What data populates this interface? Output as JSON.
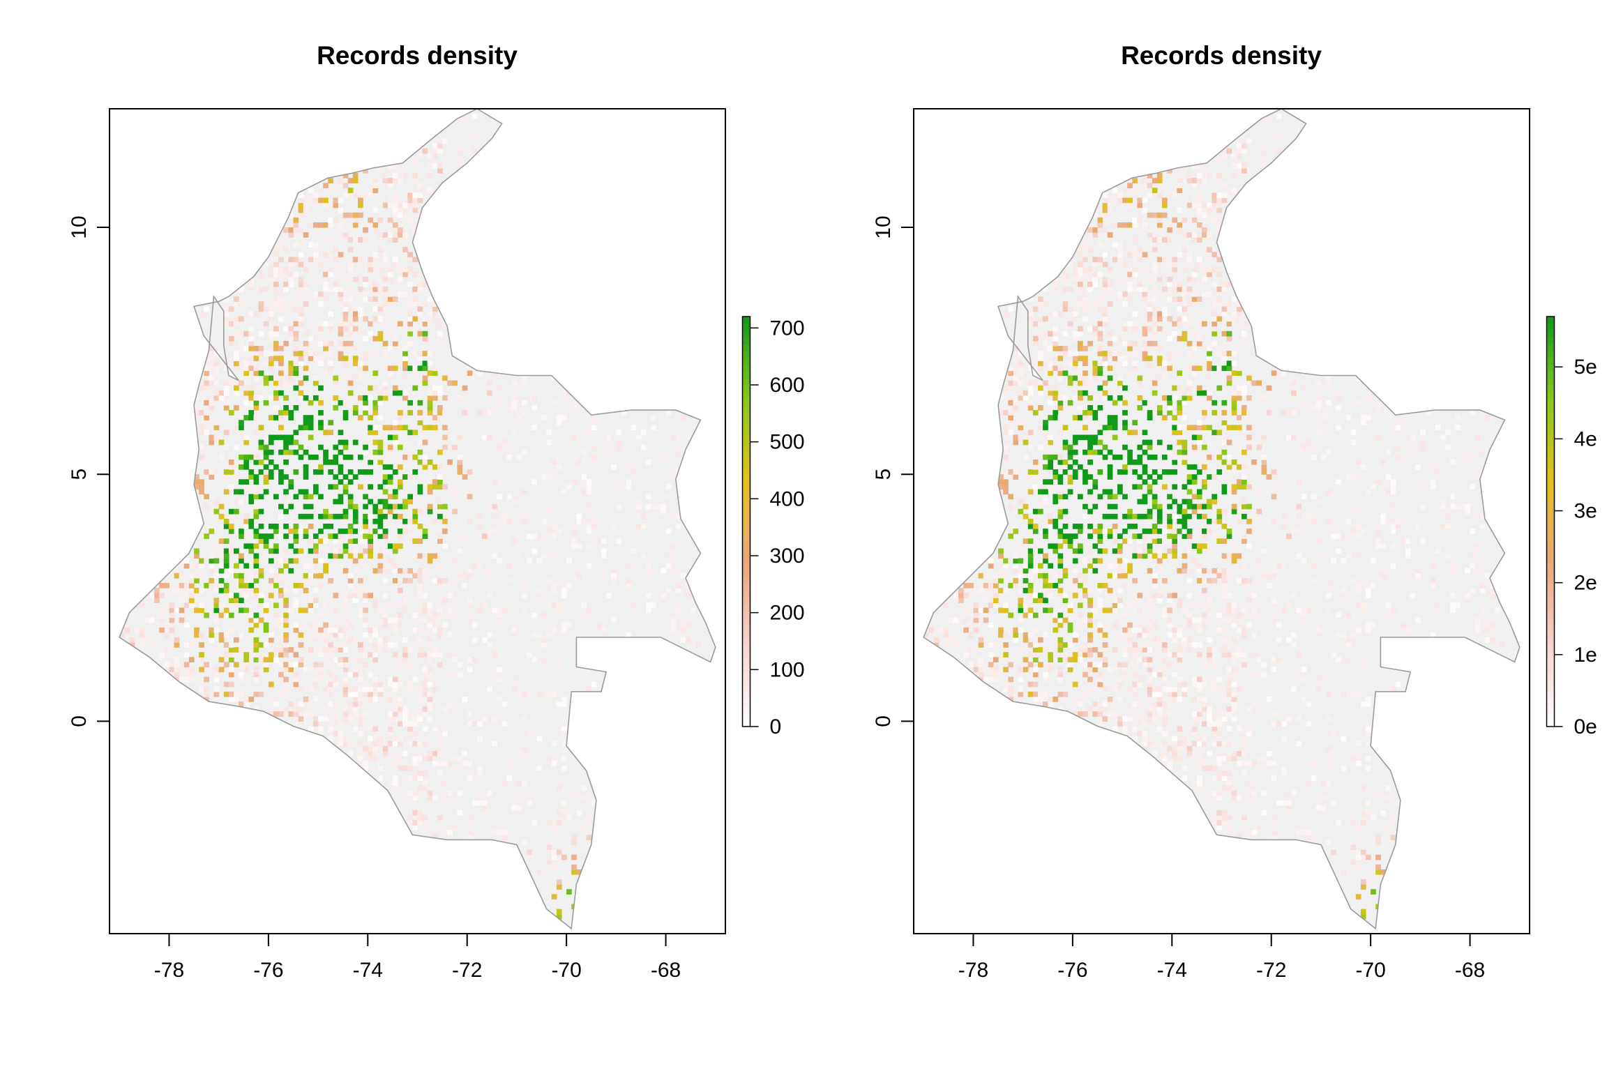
{
  "colors": {
    "background": "#ffffff",
    "land_base": "#f0f0f0",
    "border": "#9a9a9a",
    "ramp": [
      "#ffffff",
      "#f5d3cf",
      "#e8a87c",
      "#e0c21a",
      "#8bc81a",
      "#0f9a1a"
    ]
  },
  "chart_data": [
    {
      "type": "heatmap",
      "title": "Records density",
      "xlabel": "",
      "ylabel": "",
      "xlim": [
        -79.2,
        -66.8
      ],
      "ylim": [
        -4.3,
        12.4
      ],
      "x_ticks": [
        -78,
        -76,
        -74,
        -72,
        -70,
        -68
      ],
      "x_tick_labels": [
        "-78",
        "-76",
        "-74",
        "-72",
        "-70",
        "-68"
      ],
      "y_ticks": [
        0,
        5,
        10
      ],
      "y_tick_labels": [
        "0",
        "5",
        "10"
      ],
      "legend": {
        "placement": "right",
        "range": [
          0,
          720
        ],
        "ticks": [
          0,
          100,
          200,
          300,
          400,
          500,
          600,
          700
        ],
        "tick_labels": [
          "0",
          "100",
          "200",
          "300",
          "400",
          "500",
          "600",
          "700"
        ]
      },
      "region_outline_lonlat": [
        [
          -77.1,
          8.6
        ],
        [
          -76.9,
          8.3
        ],
        [
          -76.9,
          7.6
        ],
        [
          -76.8,
          7.0
        ],
        [
          -76.6,
          6.9
        ],
        [
          -77.3,
          7.8
        ],
        [
          -77.5,
          8.4
        ],
        [
          -77.0,
          8.5
        ],
        [
          -76.8,
          8.6
        ],
        [
          -76.3,
          9.0
        ],
        [
          -76.0,
          9.4
        ],
        [
          -75.8,
          9.8
        ],
        [
          -75.6,
          10.2
        ],
        [
          -75.4,
          10.7
        ],
        [
          -74.8,
          11.0
        ],
        [
          -74.3,
          11.1
        ],
        [
          -73.9,
          11.2
        ],
        [
          -73.3,
          11.3
        ],
        [
          -72.7,
          11.8
        ],
        [
          -72.2,
          12.2
        ],
        [
          -71.8,
          12.4
        ],
        [
          -71.3,
          12.1
        ],
        [
          -71.5,
          11.8
        ],
        [
          -72.0,
          11.3
        ],
        [
          -72.5,
          10.9
        ],
        [
          -72.9,
          10.4
        ],
        [
          -73.1,
          9.7
        ],
        [
          -72.9,
          9.1
        ],
        [
          -72.7,
          8.6
        ],
        [
          -72.4,
          8.0
        ],
        [
          -72.3,
          7.4
        ],
        [
          -71.8,
          7.1
        ],
        [
          -71.0,
          7.0
        ],
        [
          -70.3,
          7.0
        ],
        [
          -69.5,
          6.2
        ],
        [
          -68.7,
          6.3
        ],
        [
          -67.8,
          6.3
        ],
        [
          -67.3,
          6.1
        ],
        [
          -67.6,
          5.5
        ],
        [
          -67.8,
          4.9
        ],
        [
          -67.7,
          4.1
        ],
        [
          -67.3,
          3.4
        ],
        [
          -67.6,
          2.9
        ],
        [
          -67.4,
          2.4
        ],
        [
          -67.2,
          2.0
        ],
        [
          -67.0,
          1.5
        ],
        [
          -67.1,
          1.2
        ],
        [
          -68.1,
          1.7
        ],
        [
          -69.3,
          1.7
        ],
        [
          -69.8,
          1.7
        ],
        [
          -69.8,
          1.1
        ],
        [
          -69.2,
          1.0
        ],
        [
          -69.3,
          0.6
        ],
        [
          -69.9,
          0.6
        ],
        [
          -70.0,
          -0.5
        ],
        [
          -69.6,
          -1.0
        ],
        [
          -69.4,
          -1.6
        ],
        [
          -69.5,
          -2.5
        ],
        [
          -69.8,
          -3.3
        ],
        [
          -69.9,
          -4.2
        ],
        [
          -70.4,
          -3.8
        ],
        [
          -71.0,
          -2.5
        ],
        [
          -71.5,
          -2.4
        ],
        [
          -72.4,
          -2.4
        ],
        [
          -73.1,
          -2.3
        ],
        [
          -73.6,
          -1.4
        ],
        [
          -74.4,
          -0.7
        ],
        [
          -74.9,
          -0.3
        ],
        [
          -75.5,
          -0.1
        ],
        [
          -76.1,
          0.2
        ],
        [
          -76.6,
          0.3
        ],
        [
          -77.2,
          0.4
        ],
        [
          -77.8,
          0.8
        ],
        [
          -78.4,
          1.3
        ],
        [
          -79.0,
          1.7
        ],
        [
          -78.8,
          2.2
        ],
        [
          -78.3,
          2.7
        ],
        [
          -77.6,
          3.4
        ],
        [
          -77.3,
          4.0
        ],
        [
          -77.5,
          4.8
        ],
        [
          -77.4,
          5.5
        ],
        [
          -77.5,
          6.4
        ],
        [
          -77.4,
          6.8
        ],
        [
          -77.2,
          7.5
        ],
        [
          -77.1,
          8.6
        ]
      ],
      "hotspots": [
        {
          "lon": -75.5,
          "lat": 6.2,
          "weight": 600
        },
        {
          "lon": -74.1,
          "lat": 4.6,
          "weight": 620
        },
        {
          "lon": -76.5,
          "lat": 3.4,
          "weight": 480
        },
        {
          "lon": -73.1,
          "lat": 7.1,
          "weight": 420
        },
        {
          "lon": -74.8,
          "lat": 10.9,
          "weight": 300
        },
        {
          "lon": -75.6,
          "lat": 4.8,
          "weight": 520
        },
        {
          "lon": -76.6,
          "lat": 1.5,
          "weight": 330
        },
        {
          "lon": -69.9,
          "lat": -4.2,
          "weight": 700
        },
        {
          "lon": -72.8,
          "lat": 4.2,
          "weight": 260
        }
      ]
    },
    {
      "type": "heatmap",
      "title": "Records density",
      "xlabel": "",
      "ylabel": "",
      "xlim": [
        -79.2,
        -66.8
      ],
      "ylim": [
        -4.3,
        12.4
      ],
      "x_ticks": [
        -78,
        -76,
        -74,
        -72,
        -70,
        -68
      ],
      "x_tick_labels": [
        "-78",
        "-76",
        "-74",
        "-72",
        "-70",
        "-68"
      ],
      "y_ticks": [
        0,
        5,
        10
      ],
      "y_tick_labels": [
        "0",
        "5",
        "10"
      ],
      "legend": {
        "placement": "right",
        "range": [
          0,
          5.7
        ],
        "ticks": [
          0,
          1,
          2,
          3,
          4,
          5
        ],
        "tick_labels": [
          "0e",
          "1e",
          "2e",
          "3e",
          "4e",
          "5e"
        ]
      },
      "region_outline_lonlat": "same-as-panel-1",
      "hotspots": "same-as-panel-1"
    }
  ]
}
